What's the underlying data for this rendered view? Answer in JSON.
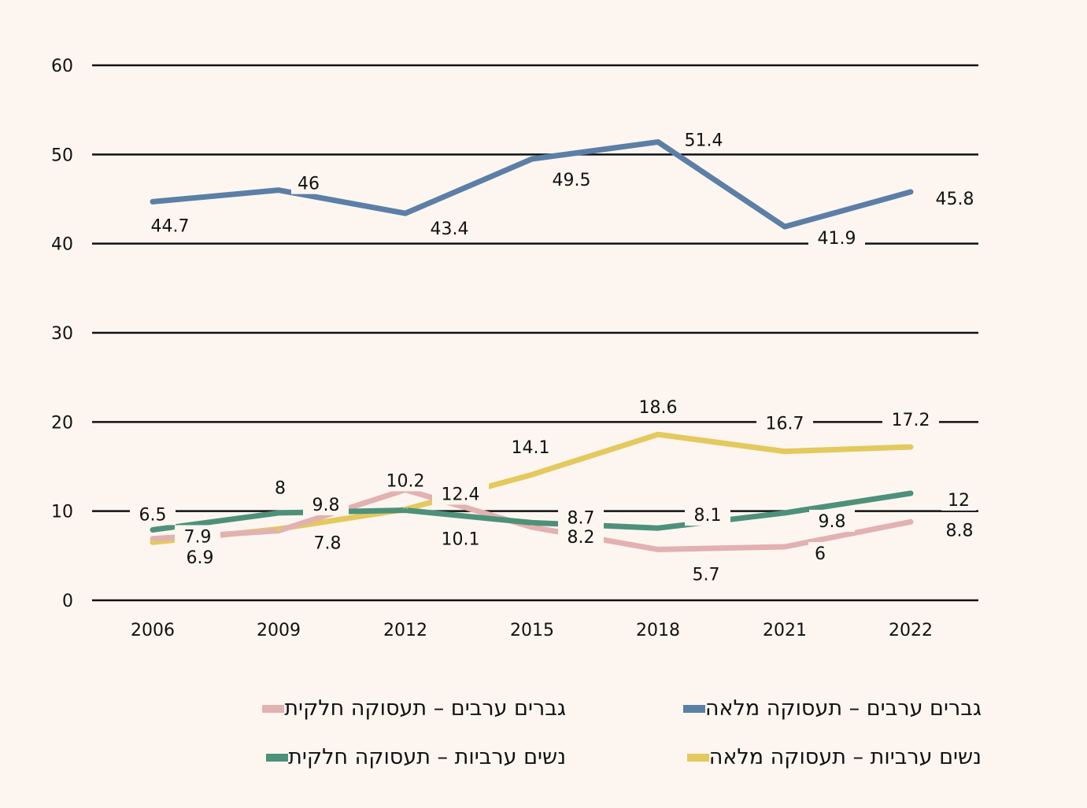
{
  "chart_data": {
    "type": "line",
    "title": "",
    "xlabel": "",
    "ylabel": "",
    "categories": [
      "2006",
      "2009",
      "2012",
      "2015",
      "2018",
      "2021",
      "2022"
    ],
    "ylim": [
      0,
      60
    ],
    "yticks": [
      0,
      10,
      20,
      30,
      40,
      50,
      60
    ],
    "grid": true,
    "legend_position": "bottom",
    "series": [
      {
        "name": "גברים ערבים – תעסוקה מלאה",
        "color": "#5b7fa6",
        "values": [
          44.7,
          46,
          43.4,
          49.5,
          51.4,
          41.9,
          45.8
        ]
      },
      {
        "name": "גברים ערבים – תעסוקה חלקית",
        "color": "#e2b1b1",
        "values": [
          6.9,
          7.8,
          12.4,
          8.2,
          5.7,
          6,
          8.8
        ]
      },
      {
        "name": "נשים ערביות – תעסוקה מלאה",
        "color": "#e3c95e",
        "values": [
          6.5,
          8,
          10.2,
          14.1,
          18.6,
          16.7,
          17.2
        ]
      },
      {
        "name": "נשים ערביות – תעסוקה חלקית",
        "color": "#4e917a",
        "values": [
          7.9,
          9.8,
          10.1,
          8.7,
          8.1,
          9.8,
          12
        ]
      }
    ]
  }
}
